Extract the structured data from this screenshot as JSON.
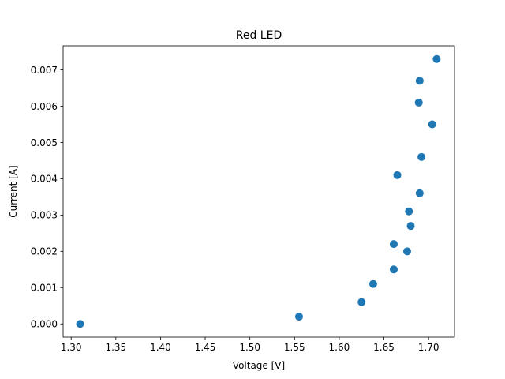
{
  "chart_data": {
    "type": "scatter",
    "title": "Red LED",
    "xlabel": "Voltage [V]",
    "ylabel": "Current [A]",
    "xlim": [
      1.291,
      1.729
    ],
    "ylim": [
      -0.000365,
      0.007665
    ],
    "xticks": [
      1.3,
      1.35,
      1.4,
      1.45,
      1.5,
      1.55,
      1.6,
      1.65,
      1.7
    ],
    "xtick_labels": [
      "1.30",
      "1.35",
      "1.40",
      "1.45",
      "1.50",
      "1.55",
      "1.60",
      "1.65",
      "1.70"
    ],
    "yticks": [
      0.0,
      0.001,
      0.002,
      0.003,
      0.004,
      0.005,
      0.006,
      0.007
    ],
    "ytick_labels": [
      "0.000",
      "0.001",
      "0.002",
      "0.003",
      "0.004",
      "0.005",
      "0.006",
      "0.007"
    ],
    "grid": false,
    "color": "#1f77b4",
    "points": [
      {
        "x": 1.31,
        "y": 0.0
      },
      {
        "x": 1.555,
        "y": 0.0002
      },
      {
        "x": 1.625,
        "y": 0.0006
      },
      {
        "x": 1.638,
        "y": 0.0011
      },
      {
        "x": 1.661,
        "y": 0.0015
      },
      {
        "x": 1.676,
        "y": 0.002
      },
      {
        "x": 1.661,
        "y": 0.0022
      },
      {
        "x": 1.68,
        "y": 0.0027
      },
      {
        "x": 1.678,
        "y": 0.0031
      },
      {
        "x": 1.69,
        "y": 0.0036
      },
      {
        "x": 1.665,
        "y": 0.0041
      },
      {
        "x": 1.692,
        "y": 0.0046
      },
      {
        "x": 1.704,
        "y": 0.0055
      },
      {
        "x": 1.689,
        "y": 0.0061
      },
      {
        "x": 1.69,
        "y": 0.0067
      },
      {
        "x": 1.709,
        "y": 0.0073
      }
    ]
  }
}
